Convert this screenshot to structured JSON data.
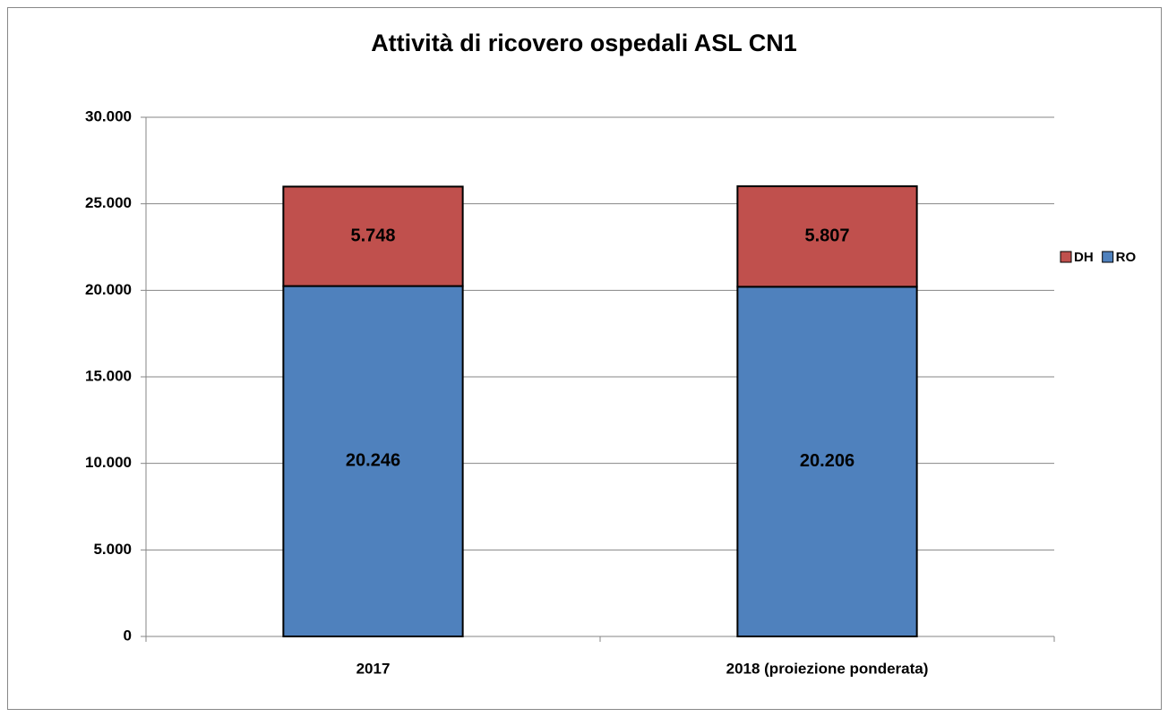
{
  "chart_data": {
    "type": "stacked_bar",
    "title": "Attività di ricovero ospedali ASL CN1",
    "categories": [
      "2017",
      "2018 (proiezione ponderata)"
    ],
    "series": [
      {
        "name": "RO",
        "color": "#4f81bd",
        "values": [
          20246,
          20206
        ],
        "value_labels": [
          "20.246",
          "20.206"
        ]
      },
      {
        "name": "DH",
        "color": "#c0504d",
        "values": [
          5748,
          5807
        ],
        "value_labels": [
          "5.748",
          "5.807"
        ]
      }
    ],
    "ylim": [
      0,
      30000
    ],
    "yticks": [
      0,
      {
        "value": 5000,
        "label": "5.000"
      },
      {
        "value": 10000,
        "label": "10.000"
      },
      {
        "value": 15000,
        "label": "15.000"
      },
      {
        "value": 20000,
        "label": "20.000"
      },
      {
        "value": 25000,
        "label": "25.000"
      },
      {
        "value": 30000,
        "label": "30.000"
      }
    ],
    "grid": true,
    "legend": "right"
  }
}
